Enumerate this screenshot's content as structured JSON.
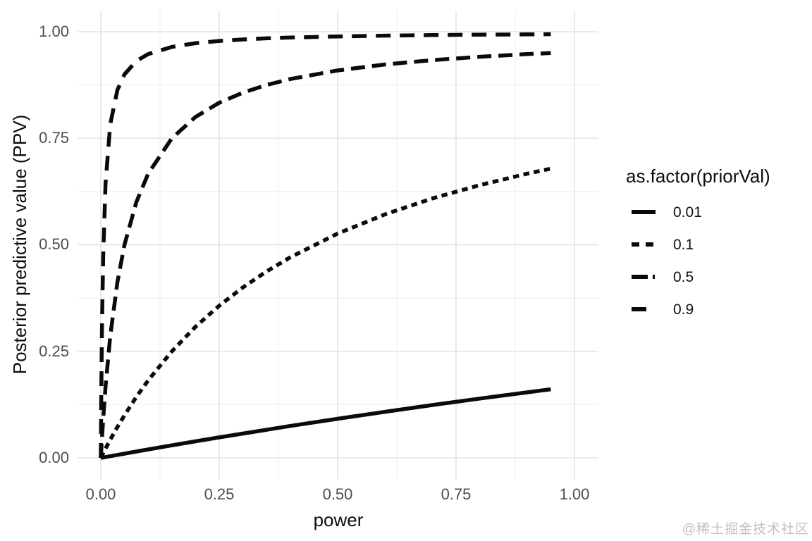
{
  "watermark": "@稀土掘金技术社区",
  "colors": {
    "line": "#0a0a0a",
    "grid_major": "#e7e7e7",
    "grid_minor": "#f2f2f2",
    "tick_text": "#4d4d4d",
    "background": "#ffffff"
  },
  "chart_data": {
    "type": "line",
    "title": "",
    "xlabel": "power",
    "ylabel": "Posterior predictive value (PPV)",
    "legend_title": "as.factor(priorVal)",
    "legend_position": "right",
    "grid": true,
    "xlim": [
      -0.05,
      1.05
    ],
    "ylim": [
      -0.05,
      1.05
    ],
    "x_ticks": [
      0,
      0.25,
      0.5,
      0.75,
      1
    ],
    "x_tick_labels": [
      "0.00",
      "0.25",
      "0.50",
      "0.75",
      "1.00"
    ],
    "y_ticks": [
      0,
      0.25,
      0.5,
      0.75,
      1
    ],
    "y_tick_labels": [
      "0.00",
      "0.25",
      "0.50",
      "0.75",
      "1.00"
    ],
    "x_minor_ticks": [
      0.125,
      0.375,
      0.625,
      0.875
    ],
    "y_minor_ticks": [
      0.125,
      0.375,
      0.625,
      0.875
    ],
    "x": [
      0,
      0.001,
      0.0025,
      0.005,
      0.01,
      0.02,
      0.035,
      0.05,
      0.075,
      0.1,
      0.15,
      0.2,
      0.25,
      0.3,
      0.35,
      0.4,
      0.5,
      0.6,
      0.7,
      0.8,
      0.9,
      0.95
    ],
    "series": [
      {
        "name": "0.01",
        "linetype": "solid",
        "dash_plot": "",
        "dash_key": "",
        "y": [
          0,
          0.0002,
          0.0005,
          0.001,
          0.002,
          0.004,
          0.007,
          0.01,
          0.0149,
          0.0198,
          0.0294,
          0.0388,
          0.0481,
          0.0571,
          0.066,
          0.0748,
          0.0917,
          0.1081,
          0.1239,
          0.1391,
          0.1538,
          0.161
        ]
      },
      {
        "name": "0.1",
        "linetype": "short-dash",
        "dash_plot": "8.5 6.5",
        "dash_key": "11 9",
        "y": [
          0,
          0.0022,
          0.0055,
          0.011,
          0.0217,
          0.0426,
          0.0722,
          0.1,
          0.1429,
          0.1818,
          0.25,
          0.3077,
          0.3571,
          0.4,
          0.4375,
          0.4706,
          0.5263,
          0.5714,
          0.6087,
          0.64,
          0.6667,
          0.6786
        ]
      },
      {
        "name": "0.5",
        "linetype": "medium-dash",
        "dash_plot": "20 10",
        "dash_key": "23 7 3 8",
        "y": [
          0,
          0.0196,
          0.0476,
          0.0909,
          0.1667,
          0.2857,
          0.4118,
          0.5,
          0.6,
          0.6667,
          0.75,
          0.8,
          0.8333,
          0.8571,
          0.875,
          0.8889,
          0.9091,
          0.9231,
          0.9333,
          0.9412,
          0.9474,
          0.95
        ]
      },
      {
        "name": "0.9",
        "linetype": "long-dash",
        "dash_plot": "21 13",
        "dash_key": "21 15",
        "y": [
          0,
          0.1525,
          0.3103,
          0.4737,
          0.6429,
          0.7826,
          0.863,
          0.9,
          0.931,
          0.9474,
          0.9643,
          0.973,
          0.9783,
          0.9818,
          0.9844,
          0.9863,
          0.989,
          0.9908,
          0.9921,
          0.9931,
          0.9938,
          0.9942
        ]
      }
    ]
  }
}
